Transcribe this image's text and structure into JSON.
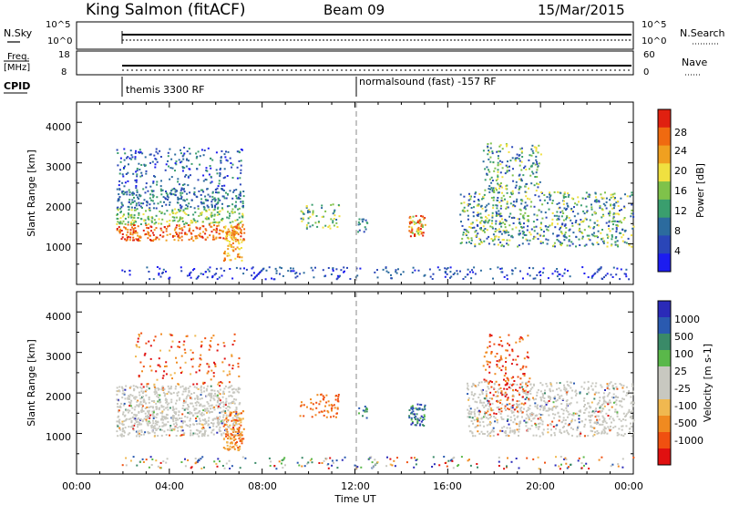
{
  "header": {
    "station": "King Salmon (fitACF)",
    "beam": "Beam 09",
    "date": "15/Mar/2015"
  },
  "summary_panels": {
    "nsky": {
      "label": "N.Sky",
      "ticks": [
        "10^5",
        "10^0"
      ]
    },
    "nsearch": {
      "label": "N.Search",
      "ticks": [
        "10^5",
        "10^0"
      ]
    },
    "freq": {
      "label_line1": "Freq.",
      "label_line2": "[MHz]",
      "ticks": [
        "18",
        "8"
      ]
    },
    "nave": {
      "label": "Nave",
      "ticks": [
        "60",
        "0"
      ]
    },
    "cpid": {
      "label": "CPID",
      "segments": [
        {
          "start_hour": 1.6,
          "text": "themis 3300 RF"
        },
        {
          "start_hour": 11.95,
          "text": "normalsound (fast) -157 RF"
        }
      ]
    }
  },
  "colors": {
    "power": [
      "#1c1cf0",
      "#2a46b8",
      "#2c6b9e",
      "#3a9e6e",
      "#7fc24a",
      "#f0e040",
      "#f0a020",
      "#f06a10",
      "#e02010"
    ],
    "velocity": [
      "#e01010",
      "#f05010",
      "#f08a20",
      "#f0b850",
      "#c8c8c0",
      "#c8c8c0",
      "#5ab84a",
      "#3a8a68",
      "#2a5ab0",
      "#2a2ab8"
    ]
  },
  "chart_data": [
    {
      "type": "heatmap",
      "name": "power-panel",
      "xlabel": "",
      "ylabel": "Slant Range [km]",
      "xlim": [
        0,
        24
      ],
      "ylim": [
        0,
        4500
      ],
      "yticks": [
        "1000",
        "2000",
        "3000",
        "4000"
      ],
      "colorbar": {
        "label": "Power [dB]",
        "ticks": [
          "4",
          "8",
          "12",
          "16",
          "20",
          "24",
          "28"
        ]
      },
      "regions": [
        {
          "x": [
            1.7,
            7.2
          ],
          "y": [
            1000,
            3400
          ],
          "level": "mixed-high"
        },
        {
          "x": [
            9.6,
            11.3
          ],
          "y": [
            1400,
            2000
          ],
          "level": "medium"
        },
        {
          "x": [
            14.3,
            15.0
          ],
          "y": [
            1200,
            1750
          ],
          "level": "high"
        },
        {
          "x": [
            16.5,
            24.0
          ],
          "y": [
            950,
            3500
          ],
          "level": "medium"
        }
      ]
    },
    {
      "type": "heatmap",
      "name": "velocity-panel",
      "xlabel": "Time UT",
      "ylabel": "Slant Range [km]",
      "xlim": [
        0,
        24
      ],
      "ylim": [
        0,
        4500
      ],
      "xticks": [
        "00:00",
        "04:00",
        "08:00",
        "12:00",
        "16:00",
        "20:00",
        "00:00"
      ],
      "yticks": [
        "1000",
        "2000",
        "3000",
        "4000"
      ],
      "colorbar": {
        "label": "Velocity [m s-1]",
        "ticks": [
          "1000",
          "500",
          "100",
          "25",
          "-25",
          "-100",
          "-500",
          "-1000"
        ]
      },
      "regions": [
        {
          "x": [
            1.7,
            7.0
          ],
          "y": [
            950,
            2200
          ],
          "level": "ground-scatter"
        },
        {
          "x": [
            6.3,
            7.2
          ],
          "y": [
            600,
            1600
          ],
          "level": "away"
        },
        {
          "x": [
            14.3,
            15.0
          ],
          "y": [
            1200,
            1750
          ],
          "level": "toward"
        },
        {
          "x": [
            16.8,
            24.0
          ],
          "y": [
            950,
            2300
          ],
          "level": "ground-scatter"
        }
      ]
    }
  ]
}
